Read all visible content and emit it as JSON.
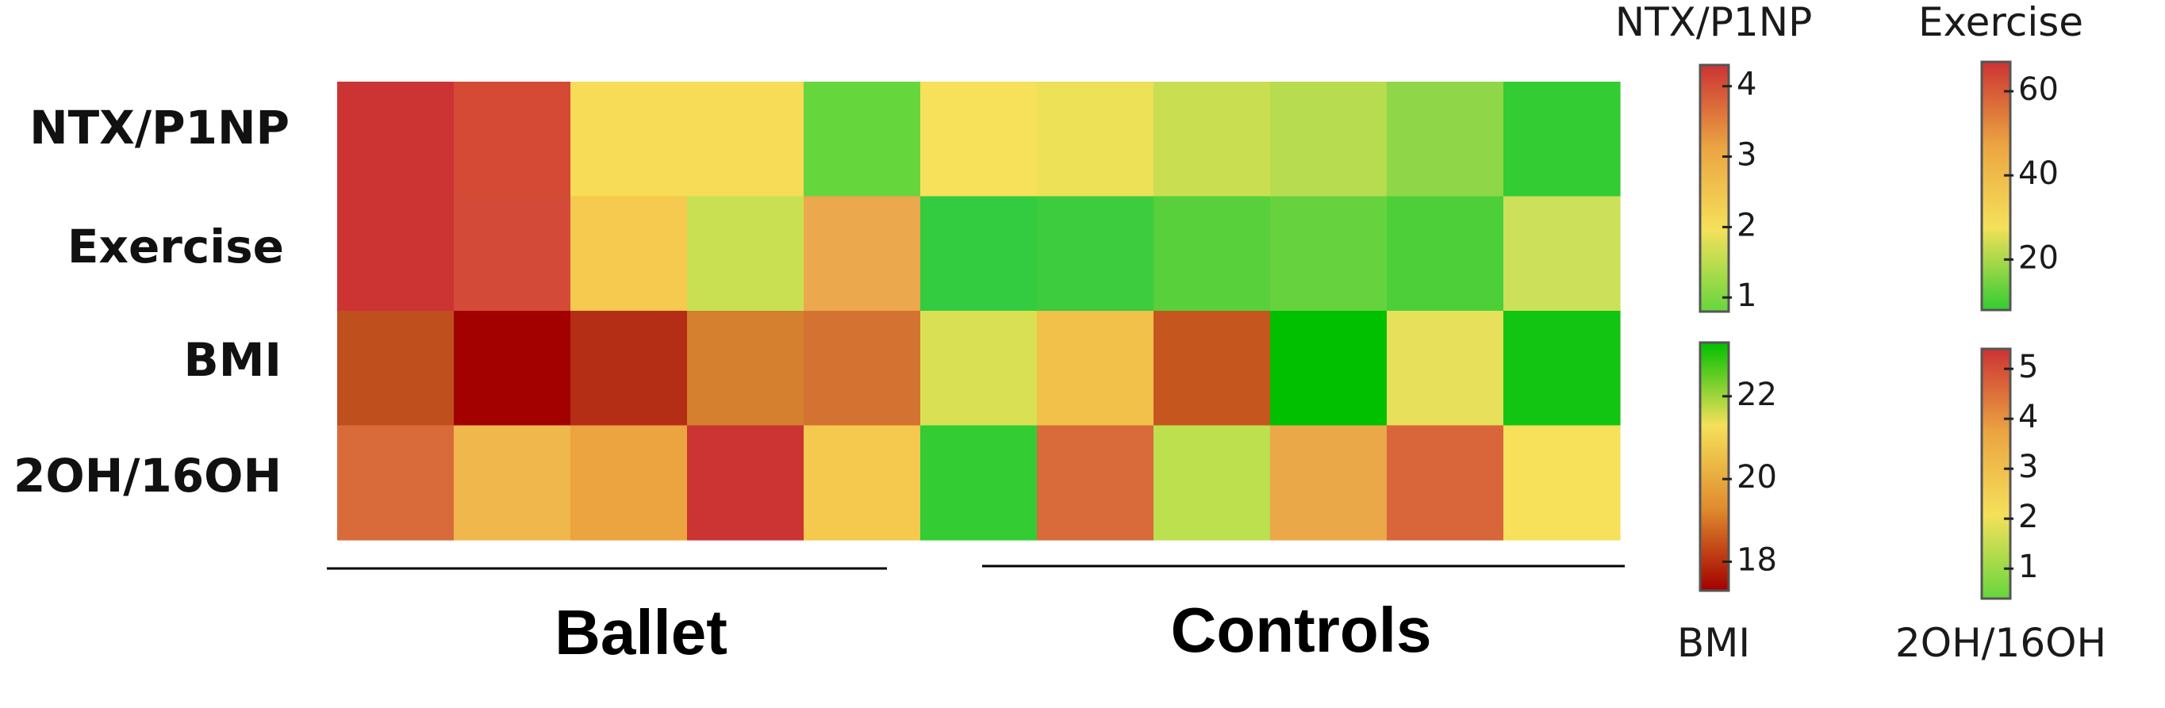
{
  "chart_data": {
    "type": "heatmap",
    "rows": [
      "NTX/P1NP",
      "Exercise",
      "BMI",
      "2OH/16OH"
    ],
    "groups": [
      "Ballet",
      "Controls"
    ],
    "n_columns": 11,
    "cell_colors": [
      [
        "#cc3333",
        "#d44a35",
        "#f7dc57",
        "#f7dc57",
        "#66d63d",
        "#f7e05a",
        "#ede157",
        "#cade51",
        "#b8dc4f",
        "#8fd748",
        "#33cc33"
      ],
      [
        "#cc3333",
        "#d44a38",
        "#f5ca4f",
        "#c9e052",
        "#eca84c",
        "#33cc40",
        "#3dcc3d",
        "#57d03b",
        "#66d33e",
        "#4dcf3a",
        "#cce05a"
      ],
      [
        "#c04f1e",
        "#a30000",
        "#b32e14",
        "#d4802f",
        "#d47331",
        "#dae054",
        "#f2c14a",
        "#c4561e",
        "#00c000",
        "#e6e05a",
        "#13c513"
      ],
      [
        "#d96b3a",
        "#f0b84c",
        "#eba43f",
        "#cc3333",
        "#f5c84e",
        "#33cc33",
        "#d96b3b",
        "#bde04e",
        "#eba848",
        "#d9653b",
        "#f7e05a"
      ]
    ],
    "colorbars": [
      {
        "title": "NTX/P1NP",
        "range": [
          0.8,
          4.3
        ],
        "ticks": [
          1,
          2,
          3,
          4
        ],
        "colors_bottom_to_top": [
          "#66d63d",
          "#f5e05a",
          "#eba442",
          "#cc3333"
        ]
      },
      {
        "title": "Exercise",
        "range": [
          8,
          67
        ],
        "ticks": [
          20,
          40,
          60
        ],
        "colors_bottom_to_top": [
          "#33cc33",
          "#f5e05a",
          "#eba442",
          "#cc3333"
        ]
      },
      {
        "title": "BMI",
        "range": [
          17.3,
          23.3
        ],
        "ticks": [
          18,
          20,
          22
        ],
        "colors_bottom_to_top": [
          "#a30000",
          "#e08c2e",
          "#f5e05a",
          "#00c000"
        ]
      },
      {
        "title": "2OH/16OH",
        "range": [
          0.4,
          5.4
        ],
        "ticks": [
          1,
          2,
          3,
          4,
          5
        ],
        "colors_bottom_to_top": [
          "#66d63d",
          "#f5e05a",
          "#eba442",
          "#cc3333"
        ]
      }
    ]
  }
}
